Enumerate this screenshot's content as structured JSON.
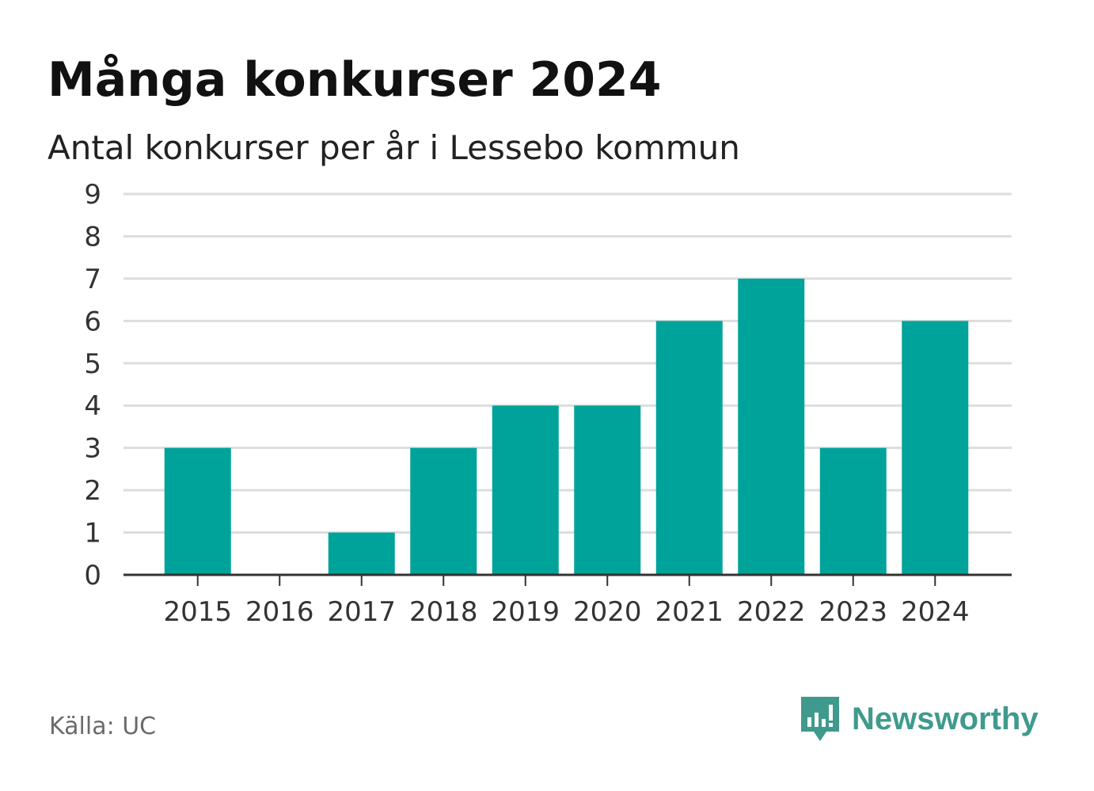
{
  "title": "Många konkurser 2024",
  "subtitle": "Antal konkurser per år i Lessebo kommun",
  "source": "Källa: UC",
  "brand": {
    "name": "Newsworthy",
    "icon": "newsworthy-logo-icon",
    "color": "#3f9a8d"
  },
  "colors": {
    "bar": "#00a39a",
    "grid": "#dddddd",
    "axis": "#333333",
    "text": "#333333"
  },
  "chart_data": {
    "type": "bar",
    "categories": [
      "2015",
      "2016",
      "2017",
      "2018",
      "2019",
      "2020",
      "2021",
      "2022",
      "2023",
      "2024"
    ],
    "values": [
      3,
      0,
      1,
      3,
      4,
      4,
      6,
      7,
      3,
      6
    ],
    "ylim": [
      0,
      9
    ],
    "yticks": [
      "0",
      "1",
      "2",
      "3",
      "4",
      "5",
      "6",
      "7",
      "8",
      "9"
    ],
    "grid": true,
    "legend": "none"
  }
}
